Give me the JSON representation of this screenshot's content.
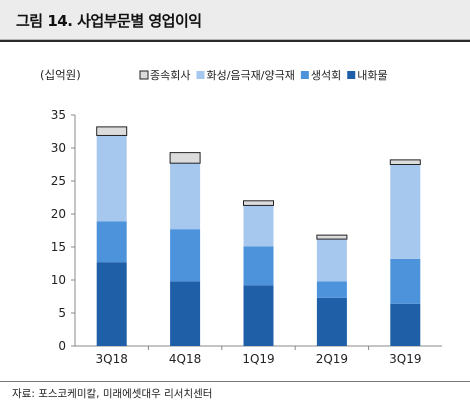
{
  "header": {
    "title": "그림 14. 사업부문별 영업이익"
  },
  "chart_data": {
    "type": "bar",
    "stacked": true,
    "title": "그림 14. 사업부문별 영업이익",
    "unit_label": "(십억원)",
    "categories": [
      "3Q18",
      "4Q18",
      "1Q19",
      "2Q19",
      "3Q19"
    ],
    "ylim": [
      0,
      35
    ],
    "yticks": [
      0,
      5,
      10,
      15,
      20,
      25,
      30,
      35
    ],
    "grid": false,
    "legend_position": "top",
    "series": [
      {
        "name": "내화물",
        "color": "#1f5fa8",
        "values": [
          12.7,
          9.8,
          9.2,
          7.3,
          6.4
        ]
      },
      {
        "name": "생석회",
        "color": "#4d93dc",
        "values": [
          6.2,
          7.9,
          5.9,
          2.5,
          6.8
        ]
      },
      {
        "name": "화성/음극재/양극재",
        "color": "#a7c8ee",
        "values": [
          13.0,
          10.0,
          6.2,
          6.4,
          14.3
        ]
      },
      {
        "name": "종속회사",
        "color": "#dcdcdc",
        "values": [
          1.3,
          1.6,
          0.7,
          0.6,
          0.7
        ]
      }
    ]
  },
  "source": {
    "text": "자료: 포스코케미칼, 미래에셋대우 리서치센터"
  }
}
